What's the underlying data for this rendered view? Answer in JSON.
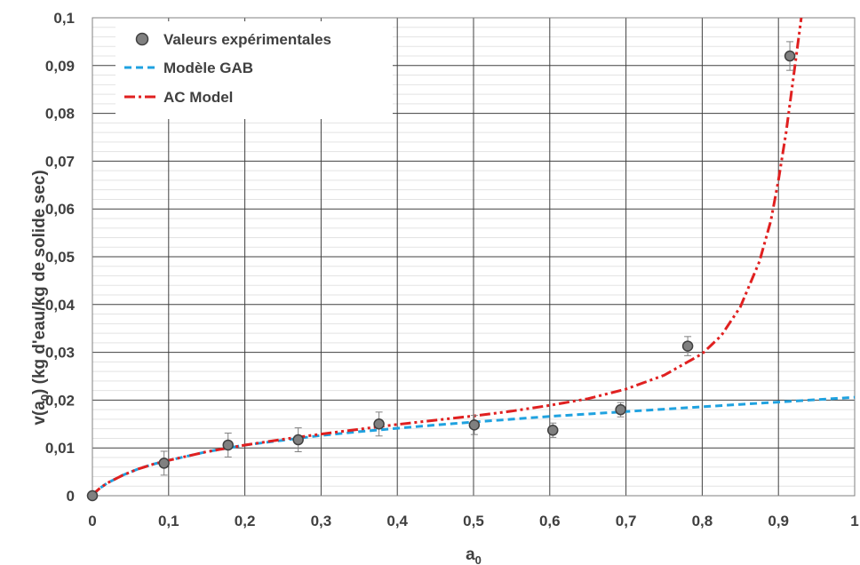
{
  "chart_data": {
    "type": "scatter",
    "xlabel": "a",
    "xlabel_sub": "0",
    "ylabel_pre": "v(a",
    "ylabel_sub": "0",
    "ylabel_post": ") (kg d'eau/kg de solide sec)",
    "xlim": [
      0,
      1
    ],
    "ylim": [
      0,
      0.1
    ],
    "x_ticks": [
      0,
      0.1,
      0.2,
      0.3,
      0.4,
      0.5,
      0.6,
      0.7,
      0.8,
      0.9,
      1
    ],
    "x_tick_labels": [
      "0",
      "0,1",
      "0,2",
      "0,3",
      "0,4",
      "0,5",
      "0,6",
      "0,7",
      "0,8",
      "0,9",
      "1"
    ],
    "y_ticks": [
      0,
      0.01,
      0.02,
      0.03,
      0.04,
      0.05,
      0.06,
      0.07,
      0.08,
      0.09,
      0.1
    ],
    "y_tick_labels": [
      "0",
      "0,01",
      "0,02",
      "0,03",
      "0,04",
      "0,05",
      "0,06",
      "0,07",
      "0,08",
      "0,09",
      "0,1"
    ],
    "grid": true,
    "legend_position": "top-left",
    "series": [
      {
        "name": "Valeurs expérimentales",
        "kind": "points-with-error-bars",
        "color": "#808080",
        "x": [
          0,
          0.094,
          0.178,
          0.27,
          0.376,
          0.501,
          0.604,
          0.693,
          0.781,
          0.915
        ],
        "y": [
          0,
          0.0068,
          0.0106,
          0.0117,
          0.015,
          0.0148,
          0.0137,
          0.018,
          0.0313,
          0.092
        ],
        "error": [
          0,
          0.0025,
          0.0025,
          0.0025,
          0.0025,
          0.002,
          0.0015,
          0.0015,
          0.002,
          0.003
        ]
      },
      {
        "name": "Modèle GAB",
        "kind": "dashed-line",
        "color": "#1FA2E0",
        "x": [
          0,
          0.005,
          0.01,
          0.02,
          0.04,
          0.06,
          0.08,
          0.1,
          0.15,
          0.2,
          0.25,
          0.3,
          0.35,
          0.4,
          0.45,
          0.5,
          0.55,
          0.6,
          0.65,
          0.7,
          0.75,
          0.8,
          0.85,
          0.9,
          0.95,
          1.0
        ],
        "y": [
          0,
          0.0009,
          0.0016,
          0.0027,
          0.0043,
          0.0056,
          0.0066,
          0.0074,
          0.0092,
          0.0106,
          0.0116,
          0.0126,
          0.0134,
          0.0141,
          0.0148,
          0.0154,
          0.016,
          0.0166,
          0.0171,
          0.0176,
          0.0181,
          0.0186,
          0.0191,
          0.0196,
          0.0201,
          0.0206
        ]
      },
      {
        "name": "AC Model",
        "kind": "dash-dot-line",
        "color": "#E02020",
        "x": [
          0,
          0.005,
          0.01,
          0.02,
          0.04,
          0.06,
          0.08,
          0.1,
          0.15,
          0.2,
          0.25,
          0.3,
          0.35,
          0.4,
          0.45,
          0.5,
          0.55,
          0.6,
          0.65,
          0.7,
          0.75,
          0.8,
          0.825,
          0.85,
          0.875,
          0.89,
          0.9,
          0.91,
          0.92,
          0.93
        ],
        "y": [
          0,
          0.0009,
          0.0016,
          0.0027,
          0.0043,
          0.0056,
          0.0066,
          0.0074,
          0.0092,
          0.0106,
          0.0118,
          0.0129,
          0.0139,
          0.0149,
          0.0158,
          0.0167,
          0.0177,
          0.0189,
          0.0203,
          0.0223,
          0.0252,
          0.0297,
          0.0335,
          0.0395,
          0.049,
          0.0575,
          0.066,
          0.076,
          0.088,
          0.1
        ]
      }
    ]
  }
}
